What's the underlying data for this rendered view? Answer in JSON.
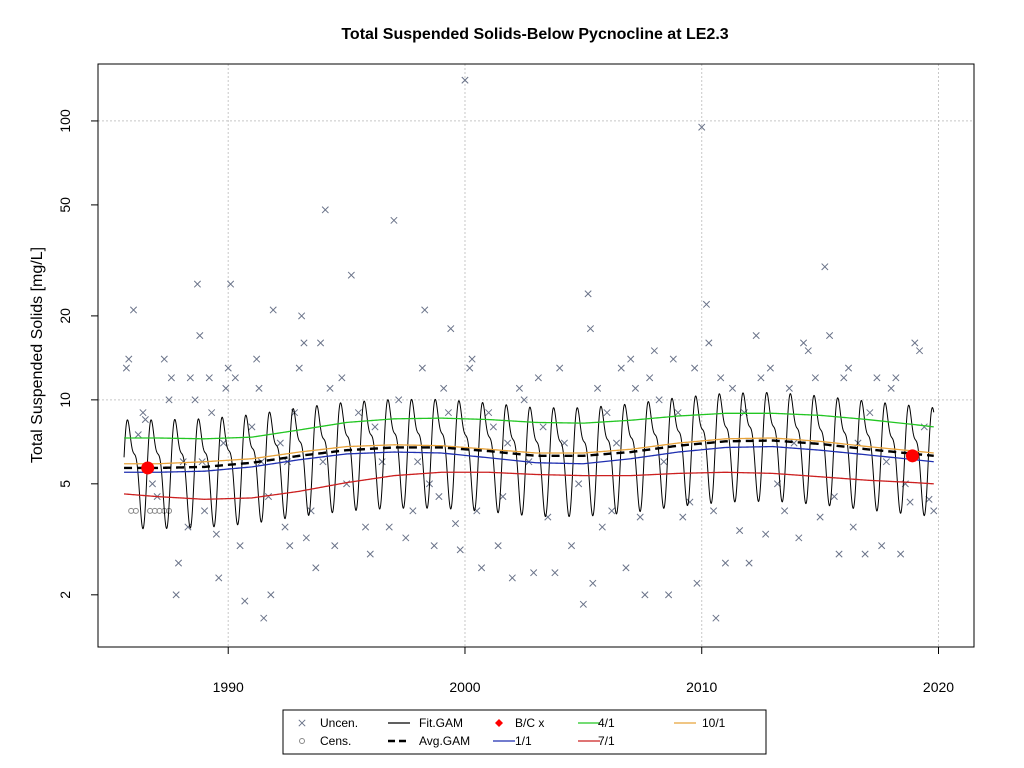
{
  "chart_data": {
    "type": "line",
    "title": "Total Suspended Solids-Below Pycnocline at LE2.3",
    "xlabel": "",
    "ylabel": "Total Suspended Solids [mg/L]",
    "y_scale": "log",
    "xlim": [
      1984.5,
      2021.5
    ],
    "ylim": [
      1.3,
      160
    ],
    "x_ticks": [
      1990,
      2000,
      2010,
      2020
    ],
    "x_tick_labels": [
      "1990",
      "2000",
      "2010",
      "2020"
    ],
    "y_ticks": [
      2,
      5,
      10,
      20,
      50,
      100
    ],
    "y_tick_labels": [
      "2",
      "5",
      "10",
      "20",
      "50",
      "100"
    ],
    "grid": true,
    "legend_position": "bottom-outside",
    "legend": [
      {
        "label": "Uncen.",
        "symbol": "x",
        "color": "#6a7389"
      },
      {
        "label": "Cens.",
        "symbol": "circle",
        "color": "#888888"
      },
      {
        "label": "Fit.GAM",
        "symbol": "line",
        "color": "#000000"
      },
      {
        "label": "Avg.GAM",
        "symbol": "dash",
        "color": "#000000"
      },
      {
        "label": "B/C x",
        "symbol": "diamond",
        "color": "#ff0000"
      },
      {
        "label": "1/1",
        "symbol": "line",
        "color": "#1f2fb0"
      },
      {
        "label": "4/1",
        "symbol": "line",
        "color": "#22c622"
      },
      {
        "label": "7/1",
        "symbol": "line",
        "color": "#cc2020"
      },
      {
        "label": "10/1",
        "symbol": "line",
        "color": "#e8a33a"
      }
    ],
    "series": [
      {
        "name": "Avg.GAM",
        "color": "#000000",
        "x": [
          1985.6,
          1987,
          1989,
          1991,
          1993,
          1995,
          1997,
          1999,
          2001,
          2003,
          2005,
          2007,
          2009,
          2011,
          2013,
          2015,
          2017,
          2019,
          2019.8
        ],
        "y": [
          5.7,
          5.7,
          5.75,
          5.95,
          6.3,
          6.6,
          6.75,
          6.75,
          6.55,
          6.3,
          6.3,
          6.5,
          6.85,
          7.1,
          7.15,
          6.95,
          6.65,
          6.4,
          6.3
        ]
      },
      {
        "name": "1/1",
        "color": "#1f2fb0",
        "x": [
          1985.6,
          1987,
          1989,
          1991,
          1993,
          1995,
          1997,
          1999,
          2001,
          2003,
          2005,
          2007,
          2009,
          2011,
          2013,
          2015,
          2017,
          2019,
          2019.8
        ],
        "y": [
          5.5,
          5.5,
          5.55,
          5.75,
          6.1,
          6.4,
          6.5,
          6.45,
          6.2,
          5.95,
          5.9,
          6.15,
          6.5,
          6.75,
          6.8,
          6.6,
          6.35,
          6.1,
          6.0
        ]
      },
      {
        "name": "4/1",
        "color": "#22c622",
        "x": [
          1985.6,
          1987,
          1989,
          1991,
          1993,
          1995,
          1997,
          1999,
          2001,
          2003,
          2005,
          2007,
          2009,
          2011,
          2013,
          2015,
          2017,
          2019,
          2019.8
        ],
        "y": [
          7.3,
          7.3,
          7.25,
          7.35,
          7.8,
          8.3,
          8.55,
          8.6,
          8.5,
          8.3,
          8.25,
          8.45,
          8.75,
          8.95,
          8.95,
          8.8,
          8.5,
          8.15,
          8.0
        ]
      },
      {
        "name": "7/1",
        "color": "#cc2020",
        "x": [
          1985.6,
          1987,
          1989,
          1991,
          1993,
          1995,
          1997,
          1999,
          2001,
          2003,
          2005,
          2007,
          2009,
          2011,
          2013,
          2015,
          2017,
          2019,
          2019.8
        ],
        "y": [
          4.6,
          4.5,
          4.4,
          4.45,
          4.7,
          5.05,
          5.35,
          5.5,
          5.5,
          5.4,
          5.35,
          5.35,
          5.45,
          5.5,
          5.45,
          5.3,
          5.15,
          5.05,
          5.0
        ]
      },
      {
        "name": "10/1",
        "color": "#e8a33a",
        "x": [
          1985.6,
          1987,
          1989,
          1991,
          1993,
          1995,
          1997,
          1999,
          2001,
          2003,
          2005,
          2007,
          2009,
          2011,
          2013,
          2015,
          2017,
          2019,
          2019.8
        ],
        "y": [
          5.9,
          5.9,
          6.0,
          6.15,
          6.5,
          6.8,
          6.9,
          6.85,
          6.65,
          6.45,
          6.45,
          6.65,
          7.0,
          7.25,
          7.3,
          7.1,
          6.8,
          6.55,
          6.45
        ]
      }
    ],
    "fit_gam": {
      "name": "Fit.GAM",
      "color": "#000000",
      "x_start": 1985.6,
      "x_end": 2019.8,
      "seasonal_amplitude_log": 0.27
    },
    "bc_points": [
      {
        "x": 1986.6,
        "y": 5.7
      },
      {
        "x": 2018.9,
        "y": 6.3
      }
    ],
    "censored": [
      {
        "x": 1985.9,
        "y": 4.0
      },
      {
        "x": 1986.1,
        "y": 4.0
      },
      {
        "x": 1986.7,
        "y": 4.0
      },
      {
        "x": 1986.9,
        "y": 4.0
      },
      {
        "x": 1987.1,
        "y": 4.0
      },
      {
        "x": 1987.3,
        "y": 4.0
      },
      {
        "x": 1987.5,
        "y": 4.0
      }
    ],
    "uncensored": [
      [
        1985.7,
        13
      ],
      [
        1985.8,
        14
      ],
      [
        1986.0,
        21
      ],
      [
        1986.2,
        7.5
      ],
      [
        1986.4,
        9
      ],
      [
        1986.5,
        8.5
      ],
      [
        1986.8,
        5
      ],
      [
        1987.0,
        4.5
      ],
      [
        1987.3,
        14
      ],
      [
        1987.5,
        10
      ],
      [
        1987.6,
        12
      ],
      [
        1987.8,
        2
      ],
      [
        1987.9,
        2.6
      ],
      [
        1988.1,
        6
      ],
      [
        1988.3,
        3.5
      ],
      [
        1988.4,
        12
      ],
      [
        1988.6,
        10
      ],
      [
        1988.7,
        26
      ],
      [
        1988.8,
        17
      ],
      [
        1988.9,
        6
      ],
      [
        1989.0,
        4
      ],
      [
        1989.2,
        12
      ],
      [
        1989.3,
        9
      ],
      [
        1989.5,
        3.3
      ],
      [
        1989.6,
        2.3
      ],
      [
        1989.8,
        7
      ],
      [
        1989.9,
        11
      ],
      [
        1990.0,
        13
      ],
      [
        1990.1,
        26
      ],
      [
        1990.3,
        12
      ],
      [
        1990.5,
        3
      ],
      [
        1990.7,
        1.9
      ],
      [
        1991.0,
        8
      ],
      [
        1991.2,
        14
      ],
      [
        1991.3,
        11
      ],
      [
        1991.4,
        6
      ],
      [
        1991.5,
        1.65
      ],
      [
        1991.7,
        4.5
      ],
      [
        1991.8,
        2
      ],
      [
        1991.9,
        21
      ],
      [
        1992.2,
        7
      ],
      [
        1992.4,
        3.5
      ],
      [
        1992.5,
        6
      ],
      [
        1992.6,
        3
      ],
      [
        1992.8,
        9
      ],
      [
        1993.0,
        13
      ],
      [
        1993.1,
        20
      ],
      [
        1993.2,
        16
      ],
      [
        1993.3,
        3.2
      ],
      [
        1993.5,
        4
      ],
      [
        1993.7,
        2.5
      ],
      [
        1993.9,
        16
      ],
      [
        1994.0,
        6
      ],
      [
        1994.1,
        48
      ],
      [
        1994.3,
        11
      ],
      [
        1994.5,
        3
      ],
      [
        1994.8,
        12
      ],
      [
        1995.0,
        5
      ],
      [
        1995.2,
        28
      ],
      [
        1995.5,
        9
      ],
      [
        1995.8,
        3.5
      ],
      [
        1996.0,
        2.8
      ],
      [
        1996.2,
        8
      ],
      [
        1996.5,
        6
      ],
      [
        1996.8,
        3.5
      ],
      [
        1997.0,
        44
      ],
      [
        1997.2,
        10
      ],
      [
        1997.5,
        3.2
      ],
      [
        1997.8,
        4
      ],
      [
        1998.0,
        6
      ],
      [
        1998.2,
        13
      ],
      [
        1998.3,
        21
      ],
      [
        1998.5,
        5
      ],
      [
        1998.7,
        3
      ],
      [
        1998.9,
        4.5
      ],
      [
        1999.1,
        11
      ],
      [
        1999.3,
        9
      ],
      [
        1999.4,
        18
      ],
      [
        1999.6,
        3.6
      ],
      [
        1999.8,
        2.9
      ],
      [
        2000.0,
        140
      ],
      [
        2000.2,
        13
      ],
      [
        2000.3,
        14
      ],
      [
        2000.5,
        4
      ],
      [
        2000.7,
        2.5
      ],
      [
        2001.0,
        9
      ],
      [
        2001.2,
        8
      ],
      [
        2001.4,
        3
      ],
      [
        2001.6,
        4.5
      ],
      [
        2001.8,
        7
      ],
      [
        2002.0,
        2.3
      ],
      [
        2002.3,
        11
      ],
      [
        2002.5,
        10
      ],
      [
        2002.7,
        6
      ],
      [
        2002.9,
        2.4
      ],
      [
        2003.1,
        12
      ],
      [
        2003.3,
        8
      ],
      [
        2003.5,
        3.8
      ],
      [
        2003.8,
        2.4
      ],
      [
        2004.0,
        13
      ],
      [
        2004.2,
        7
      ],
      [
        2004.5,
        3
      ],
      [
        2004.8,
        5
      ],
      [
        2005.0,
        1.85
      ],
      [
        2005.2,
        24
      ],
      [
        2005.3,
        18
      ],
      [
        2005.4,
        2.2
      ],
      [
        2005.6,
        11
      ],
      [
        2005.8,
        3.5
      ],
      [
        2006.0,
        9
      ],
      [
        2006.2,
        4
      ],
      [
        2006.4,
        7
      ],
      [
        2006.6,
        13
      ],
      [
        2006.8,
        2.5
      ],
      [
        2007.0,
        14
      ],
      [
        2007.2,
        11
      ],
      [
        2007.4,
        3.8
      ],
      [
        2007.6,
        2
      ],
      [
        2007.8,
        12
      ],
      [
        2008.0,
        15
      ],
      [
        2008.2,
        10
      ],
      [
        2008.4,
        6
      ],
      [
        2008.6,
        2
      ],
      [
        2008.8,
        14
      ],
      [
        2009.0,
        9
      ],
      [
        2009.2,
        3.8
      ],
      [
        2009.5,
        4.3
      ],
      [
        2009.7,
        13
      ],
      [
        2009.8,
        2.2
      ],
      [
        2010.0,
        95
      ],
      [
        2010.2,
        22
      ],
      [
        2010.3,
        16
      ],
      [
        2010.5,
        4
      ],
      [
        2010.6,
        1.65
      ],
      [
        2010.8,
        12
      ],
      [
        2011.0,
        2.6
      ],
      [
        2011.3,
        11
      ],
      [
        2011.6,
        3.4
      ],
      [
        2011.8,
        9
      ],
      [
        2012.0,
        2.6
      ],
      [
        2012.3,
        17
      ],
      [
        2012.5,
        12
      ],
      [
        2012.7,
        3.3
      ],
      [
        2012.9,
        13
      ],
      [
        2013.2,
        5
      ],
      [
        2013.5,
        4
      ],
      [
        2013.7,
        11
      ],
      [
        2013.9,
        7
      ],
      [
        2014.1,
        3.2
      ],
      [
        2014.3,
        16
      ],
      [
        2014.5,
        15
      ],
      [
        2014.8,
        12
      ],
      [
        2015.0,
        3.8
      ],
      [
        2015.2,
        30
      ],
      [
        2015.4,
        17
      ],
      [
        2015.6,
        4.5
      ],
      [
        2015.8,
        2.8
      ],
      [
        2016.0,
        12
      ],
      [
        2016.2,
        13
      ],
      [
        2016.4,
        3.5
      ],
      [
        2016.6,
        7
      ],
      [
        2016.9,
        2.8
      ],
      [
        2017.1,
        9
      ],
      [
        2017.4,
        12
      ],
      [
        2017.6,
        3
      ],
      [
        2017.8,
        6
      ],
      [
        2018.0,
        11
      ],
      [
        2018.2,
        12
      ],
      [
        2018.4,
        2.8
      ],
      [
        2018.6,
        5
      ],
      [
        2018.8,
        4.3
      ],
      [
        2019.0,
        16
      ],
      [
        2019.2,
        15
      ],
      [
        2019.4,
        8
      ],
      [
        2019.6,
        4.4
      ],
      [
        2019.8,
        4
      ]
    ]
  }
}
